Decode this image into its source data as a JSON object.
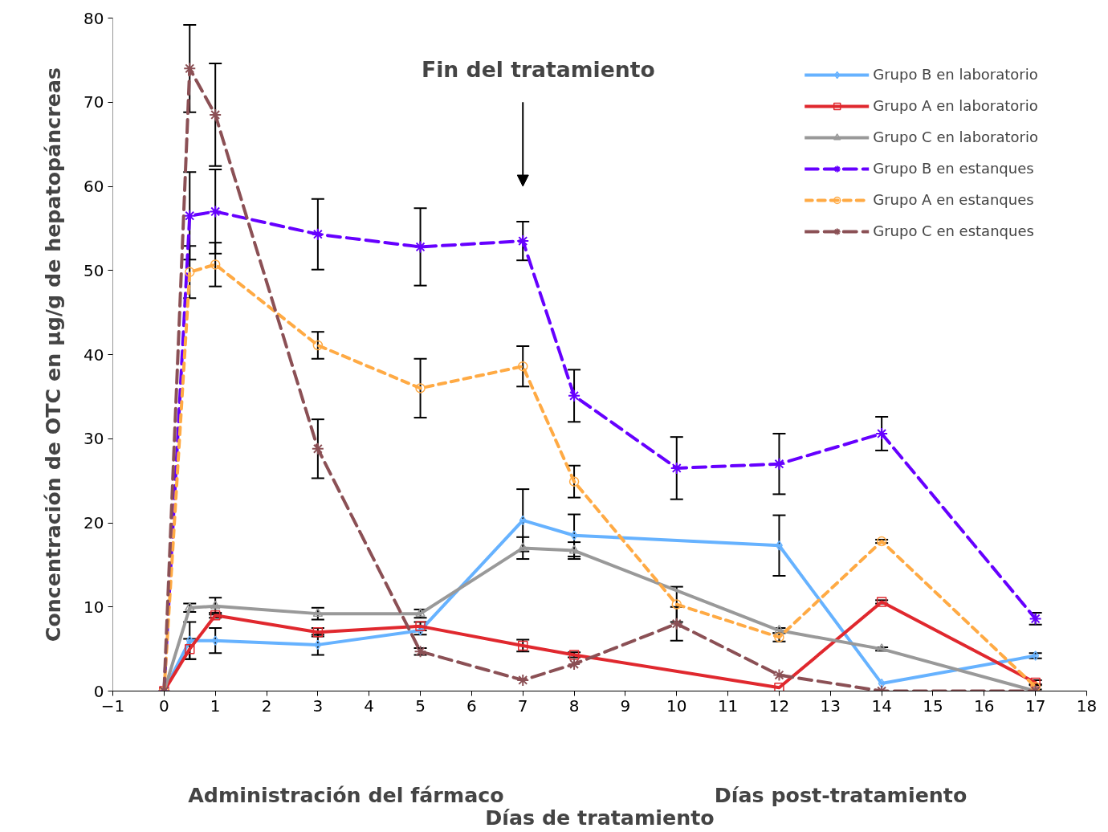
{
  "chart_data": {
    "type": "line",
    "xlabel": "Días de tratamiento",
    "ylabel": "Concentración de OTC en µg/g de hepatopáncreas",
    "xlim": [
      -1,
      18
    ],
    "xticks": [
      -1,
      0,
      1,
      2,
      3,
      4,
      5,
      6,
      7,
      8,
      9,
      10,
      11,
      12,
      13,
      14,
      15,
      16,
      17,
      18
    ],
    "ylim": [
      0,
      80
    ],
    "yticks": [
      0,
      10,
      20,
      30,
      40,
      50,
      60,
      70,
      80
    ],
    "grid": false,
    "legend": "top right",
    "series": [
      {
        "name": "Grupo B en laboratorio",
        "color": "#66b2ff",
        "marker": "diamond",
        "line_style": "solid",
        "x": [
          0,
          0.5,
          1,
          3,
          5,
          7,
          8,
          12,
          14,
          17
        ],
        "values": [
          0,
          6,
          6,
          5.5,
          7.2,
          20.3,
          18.5,
          17.3,
          0.9,
          4.2
        ],
        "errors": [
          null,
          2.2,
          1.5,
          1.2,
          0.5,
          3.7,
          2.5,
          3.6,
          null,
          0.3
        ]
      },
      {
        "name": "Grupo A en laboratorio",
        "color": "#e0282e",
        "marker": "square",
        "line_style": "solid",
        "x": [
          0,
          0.5,
          1,
          3,
          5,
          7,
          8,
          12,
          14,
          17
        ],
        "values": [
          0,
          5,
          9,
          7,
          7.7,
          5.4,
          4.3,
          0.4,
          10.6,
          1
        ],
        "errors": [
          null,
          1.2,
          0.3,
          0.5,
          0.5,
          0.7,
          0.3,
          null,
          0.2,
          0.3
        ]
      },
      {
        "name": "Grupo C en laboratorio",
        "color": "#999999",
        "marker": "triangle",
        "line_style": "solid",
        "x": [
          0,
          0.5,
          1,
          3,
          5,
          7,
          8,
          12,
          14,
          17
        ],
        "values": [
          0,
          9.9,
          10.1,
          9.2,
          9.2,
          17,
          16.7,
          7.2,
          5,
          0
        ],
        "errors": [
          null,
          0.5,
          1,
          0.7,
          0.5,
          1.3,
          1,
          0.3,
          0.2,
          null
        ]
      },
      {
        "name": "Grupo B en estanques",
        "color": "#6600ff",
        "marker": "cross",
        "line_style": "dashed",
        "x": [
          0,
          0.5,
          1,
          3,
          5,
          7,
          8,
          10,
          12,
          14,
          17
        ],
        "values": [
          0,
          56.5,
          57,
          54.3,
          52.8,
          53.5,
          35.1,
          26.5,
          27,
          30.6,
          8.6
        ],
        "errors": [
          null,
          5.2,
          5,
          4.2,
          4.6,
          2.3,
          3.1,
          3.7,
          3.6,
          2,
          0.7
        ]
      },
      {
        "name": "Grupo A en estanques",
        "color": "#ffaa44",
        "marker": "circle",
        "line_style": "dotted",
        "x": [
          0,
          0.5,
          1,
          3,
          5,
          7,
          8,
          10,
          12,
          14,
          17
        ],
        "values": [
          0,
          49.8,
          50.7,
          41.1,
          36,
          38.6,
          24.9,
          10.3,
          6.4,
          17.8,
          0.5
        ],
        "errors": [
          null,
          3.1,
          2.6,
          1.6,
          3.5,
          2.4,
          1.9,
          2.1,
          0.5,
          0.2,
          0.3
        ]
      },
      {
        "name": "Grupo C en estanques",
        "color": "#8b5055",
        "marker": "cross",
        "line_style": "dashed",
        "x": [
          0,
          0.5,
          1,
          3,
          5,
          7,
          8,
          10,
          12,
          14,
          17
        ],
        "values": [
          0,
          74,
          68.5,
          28.8,
          4.7,
          1.3,
          3.2,
          8,
          1.9,
          0,
          0
        ],
        "errors": [
          null,
          5.2,
          6.1,
          3.5,
          0.4,
          null,
          null,
          2,
          null,
          null,
          null
        ]
      }
    ],
    "annotations": [
      "Fin del tratamiento",
      "Administración del fármaco",
      "Días post-tratamiento"
    ]
  }
}
